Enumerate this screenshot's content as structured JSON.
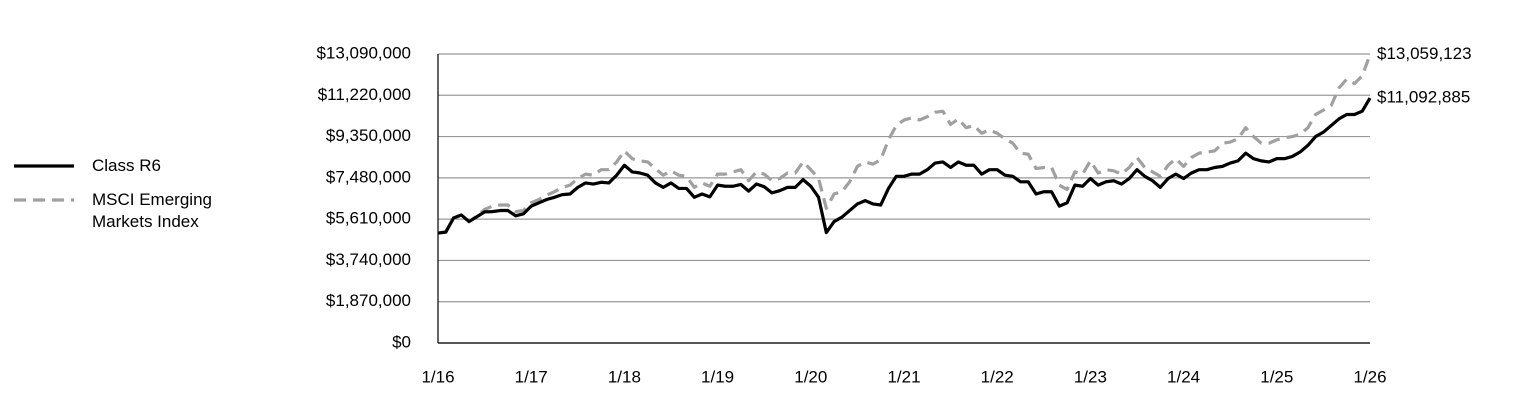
{
  "chart_data": {
    "type": "line",
    "categories": [
      "1/16",
      null,
      null,
      null,
      null,
      null,
      null,
      null,
      null,
      null,
      null,
      null,
      "1/17",
      null,
      null,
      null,
      null,
      null,
      null,
      null,
      null,
      null,
      null,
      null,
      "1/18",
      null,
      null,
      null,
      null,
      null,
      null,
      null,
      null,
      null,
      null,
      null,
      "1/19",
      null,
      null,
      null,
      null,
      null,
      null,
      null,
      null,
      null,
      null,
      null,
      "1/20",
      null,
      null,
      null,
      null,
      null,
      null,
      null,
      null,
      null,
      null,
      null,
      "1/21",
      null,
      null,
      null,
      null,
      null,
      null,
      null,
      null,
      null,
      null,
      null,
      "1/22",
      null,
      null,
      null,
      null,
      null,
      null,
      null,
      null,
      null,
      null,
      null,
      "1/23",
      null,
      null,
      null,
      null,
      null,
      null,
      null,
      null,
      null,
      null,
      null,
      "1/24",
      null,
      null,
      null,
      null,
      null,
      null,
      null,
      null,
      null,
      null,
      null,
      "1/25",
      null,
      null,
      null,
      null,
      null,
      null,
      null,
      null,
      null,
      null,
      null,
      "1/26"
    ],
    "series": [
      {
        "name": "Class R6",
        "color": "#000000",
        "dash": "solid",
        "values": [
          4980000,
          5020000,
          5660000,
          5800000,
          5500000,
          5720000,
          5940000,
          5950000,
          6000000,
          6000000,
          5760000,
          5850000,
          6200000,
          6350000,
          6500000,
          6600000,
          6720000,
          6750000,
          7050000,
          7250000,
          7200000,
          7280000,
          7250000,
          7600000,
          8050000,
          7750000,
          7700000,
          7600000,
          7250000,
          7050000,
          7250000,
          7000000,
          7000000,
          6600000,
          6750000,
          6620000,
          7150000,
          7100000,
          7100000,
          7180000,
          6880000,
          7200000,
          7080000,
          6800000,
          6900000,
          7050000,
          7050000,
          7400000,
          7100000,
          6600000,
          5000000,
          5500000,
          5700000,
          6000000,
          6300000,
          6450000,
          6300000,
          6250000,
          7000000,
          7550000,
          7550000,
          7650000,
          7650000,
          7850000,
          8150000,
          8200000,
          7950000,
          8200000,
          8050000,
          8050000,
          7650000,
          7850000,
          7850000,
          7600000,
          7550000,
          7300000,
          7300000,
          6750000,
          6850000,
          6850000,
          6200000,
          6350000,
          7150000,
          7100000,
          7450000,
          7150000,
          7300000,
          7350000,
          7200000,
          7450000,
          7850000,
          7550000,
          7350000,
          7050000,
          7450000,
          7650000,
          7450000,
          7700000,
          7850000,
          7850000,
          7950000,
          8000000,
          8150000,
          8250000,
          8600000,
          8350000,
          8250000,
          8200000,
          8350000,
          8350000,
          8450000,
          8650000,
          8950000,
          9350000,
          9550000,
          9850000,
          10150000,
          10350000,
          10350000,
          10500000,
          11092885
        ],
        "value_labels": [
          null,
          null,
          null,
          null,
          null,
          null,
          null,
          null,
          null,
          null,
          null,
          null,
          null,
          null,
          null,
          null,
          null,
          null,
          null,
          null,
          null,
          null,
          null,
          null,
          null,
          null,
          null,
          null,
          null,
          null,
          null,
          null,
          null,
          null,
          null,
          null,
          null,
          null,
          null,
          null,
          null,
          null,
          null,
          null,
          null,
          null,
          null,
          null,
          null,
          null,
          null,
          null,
          null,
          null,
          null,
          null,
          null,
          null,
          null,
          null,
          null,
          null,
          null,
          null,
          null,
          null,
          null,
          null,
          null,
          null,
          null,
          null,
          null,
          null,
          null,
          null,
          null,
          null,
          null,
          null,
          null,
          null,
          null,
          null,
          null,
          null,
          null,
          null,
          null,
          null,
          null,
          null,
          null,
          null,
          null,
          null,
          null,
          null,
          null,
          null,
          null,
          null,
          null,
          null,
          null,
          null,
          null,
          null,
          null,
          null,
          null,
          null,
          null,
          null,
          null,
          null,
          null,
          null,
          null,
          null,
          "$11,092,885"
        ]
      },
      {
        "name": "MSCI Emerging Markets Index",
        "color": "#a0a0a0",
        "dash": "dashed",
        "values": [
          4980000,
          5050000,
          5650000,
          5800000,
          5500000,
          5750000,
          6050000,
          6200000,
          6250000,
          6250000,
          5950000,
          6000000,
          6350000,
          6500000,
          6700000,
          6850000,
          7050000,
          7150000,
          7450000,
          7650000,
          7600000,
          7850000,
          7850000,
          8200000,
          8700000,
          8350000,
          8250000,
          8200000,
          7900000,
          7600000,
          7800000,
          7600000,
          7550000,
          7050000,
          7250000,
          7100000,
          7650000,
          7650000,
          7750000,
          7850000,
          7350000,
          7750000,
          7650000,
          7350000,
          7450000,
          7700000,
          7700000,
          8200000,
          7850000,
          7450000,
          6100000,
          6750000,
          6850000,
          7300000,
          8000000,
          8200000,
          8100000,
          8300000,
          9200000,
          9850000,
          10100000,
          10200000,
          10100000,
          10250000,
          10450000,
          10500000,
          9900000,
          10150000,
          9750000,
          9850000,
          9500000,
          9650000,
          9500000,
          9250000,
          9050000,
          8600000,
          8550000,
          7900000,
          7950000,
          7950000,
          7150000,
          6950000,
          7750000,
          7650000,
          8250000,
          7700000,
          7850000,
          7800000,
          7650000,
          7950000,
          8400000,
          7950000,
          7750000,
          7550000,
          8050000,
          8350000,
          8000000,
          8400000,
          8600000,
          8650000,
          8700000,
          9050000,
          9100000,
          9250000,
          9750000,
          9350000,
          9050000,
          9050000,
          9200000,
          9300000,
          9350000,
          9450000,
          9750000,
          10350000,
          10550000,
          10750000,
          11550000,
          11950000,
          11750000,
          12100000,
          13059123
        ],
        "value_labels": [
          null,
          null,
          null,
          null,
          null,
          null,
          null,
          null,
          null,
          null,
          null,
          null,
          null,
          null,
          null,
          null,
          null,
          null,
          null,
          null,
          null,
          null,
          null,
          null,
          null,
          null,
          null,
          null,
          null,
          null,
          null,
          null,
          null,
          null,
          null,
          null,
          null,
          null,
          null,
          null,
          null,
          null,
          null,
          null,
          null,
          null,
          null,
          null,
          null,
          null,
          null,
          null,
          null,
          null,
          null,
          null,
          null,
          null,
          null,
          null,
          null,
          null,
          null,
          null,
          null,
          null,
          null,
          null,
          null,
          null,
          null,
          null,
          null,
          null,
          null,
          null,
          null,
          null,
          null,
          null,
          null,
          null,
          null,
          null,
          null,
          null,
          null,
          null,
          null,
          null,
          null,
          null,
          null,
          null,
          null,
          null,
          null,
          null,
          null,
          null,
          null,
          null,
          null,
          null,
          null,
          null,
          null,
          null,
          null,
          null,
          null,
          null,
          null,
          null,
          null,
          null,
          null,
          null,
          null,
          null,
          "$13,059,123"
        ]
      }
    ],
    "ylim": [
      0,
      13090000
    ],
    "yticks": [
      {
        "value": 0,
        "label": "$0"
      },
      {
        "value": 1870000,
        "label": "$1,870,000"
      },
      {
        "value": 3740000,
        "label": "$3,740,000"
      },
      {
        "value": 5610000,
        "label": "$5,610,000"
      },
      {
        "value": 7480000,
        "label": "$7,480,000"
      },
      {
        "value": 9350000,
        "label": "$9,350,000"
      },
      {
        "value": 11220000,
        "label": "$11,220,000"
      },
      {
        "value": 13090000,
        "label": "$13,090,000"
      }
    ],
    "grid": true,
    "legend": "left"
  }
}
